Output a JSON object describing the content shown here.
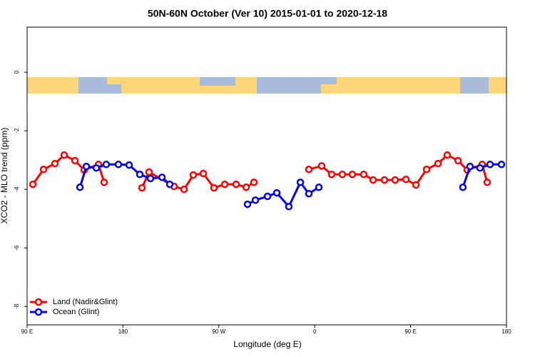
{
  "chart_data": {
    "type": "line",
    "title": "50N-60N October (Ver 10)   2015-01-01 to 2020-12-18",
    "x_label": "Longitude (deg E)",
    "y_label": "XCO2 - MLO trend (ppm)",
    "xlim": [
      90,
      540
    ],
    "ylim": [
      1.54,
      -8.63
    ],
    "xticks": [
      {
        "value": 90,
        "label": "90 E"
      },
      180,
      {
        "value": 270,
        "label": "90 W"
      },
      {
        "value": 360,
        "label": "0"
      },
      {
        "value": 450,
        "label": "90 E"
      },
      {
        "value": 540,
        "label": "180"
      }
    ],
    "yticks": [
      0,
      -2,
      -4,
      -6,
      -8
    ],
    "legend": "bottom-left",
    "series": [
      {
        "name": "Land (Nadir&Glint)",
        "color": "#ff0000",
        "x": [
          95.4,
          105.4,
          116.1,
          124.8,
          134.9,
          143.6,
          157.0,
          162.3,
          180,
          197.8,
          204.5,
          227.9,
          237.3,
          246.0,
          255.4,
          265.4,
          275.5,
          286.2,
          295.6,
          302.9,
          330,
          354.5,
          366.5,
          375.9,
          385.9,
          395.3,
          406.0,
          414.8,
          425.5,
          435.5,
          445.6,
          455.0,
          465.0,
          475.7,
          484.4,
          494.5,
          503.2,
          517.2,
          521.9
        ],
        "values": [
          -3.83,
          -3.32,
          -3.12,
          -2.83,
          -3.02,
          -3.34,
          -3.15,
          -3.76,
          null,
          -3.95,
          -3.41,
          -3.9,
          -4.0,
          -3.51,
          -3.46,
          -3.95,
          -3.83,
          -3.83,
          -3.93,
          -3.76,
          null,
          -3.32,
          -3.2,
          -3.49,
          -3.49,
          -3.49,
          -3.49,
          -3.68,
          -3.68,
          -3.68,
          -3.66,
          -3.85,
          -3.32,
          -3.12,
          -2.83,
          -3.02,
          -3.34,
          -3.15,
          -3.76
        ]
      },
      {
        "name": "Ocean (Glint)",
        "color": "#0000ee",
        "x": [
          139.6,
          145.6,
          155.0,
          164.3,
          175.7,
          185.8,
          195.8,
          205.8,
          216.6,
          223.9,
          260,
          296.9,
          304.3,
          315.7,
          324.4,
          335.7,
          346.5,
          354.5,
          363.9,
          430,
          499.1,
          505.8,
          515.2,
          524.6,
          535.3
        ],
        "values": [
          -3.93,
          -3.22,
          -3.27,
          -3.15,
          -3.15,
          -3.17,
          -3.49,
          -3.63,
          -3.59,
          -3.83,
          null,
          -4.51,
          -4.37,
          -4.24,
          -4.12,
          -4.59,
          -3.76,
          -4.15,
          -3.93,
          null,
          -3.93,
          -3.22,
          -3.27,
          -3.15,
          -3.15
        ]
      }
    ]
  }
}
